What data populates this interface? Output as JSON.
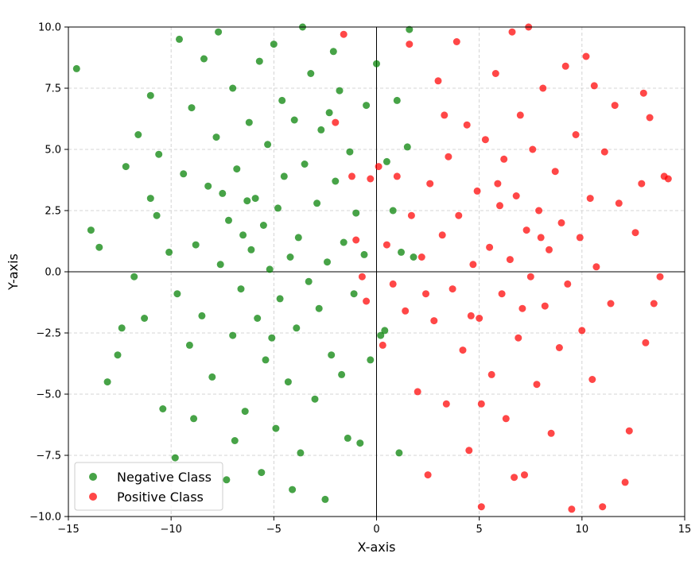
{
  "chart_data": {
    "type": "scatter",
    "title": "",
    "xlabel": "X-axis",
    "ylabel": "Y-axis",
    "xlim": [
      -15,
      15
    ],
    "ylim": [
      -10,
      10
    ],
    "xticks": [
      -15,
      -10,
      -5,
      0,
      5,
      10,
      15
    ],
    "xtick_labels": [
      "−15",
      "−10",
      "−5",
      "0",
      "5",
      "10",
      "15"
    ],
    "yticks": [
      -10,
      -7.5,
      -5,
      -2.5,
      0,
      2.5,
      5,
      7.5,
      10
    ],
    "ytick_labels": [
      "−10.0",
      "−7.5",
      "−5.0",
      "−2.5",
      "0.0",
      "2.5",
      "5.0",
      "7.5",
      "10.0"
    ],
    "grid": true,
    "grid_style": "dashed",
    "zero_lines": true,
    "legend_position": "lower-left",
    "series": [
      {
        "name": "Negative Class",
        "color": "#008000",
        "alpha": 0.72,
        "distribution": "cluster centered near (-5.5, 1), wide spread",
        "points": [
          [
            -14.6,
            8.3
          ],
          [
            -13.9,
            1.7
          ],
          [
            -13.5,
            1.0
          ],
          [
            -13.1,
            -4.5
          ],
          [
            -12.6,
            -3.4
          ],
          [
            -12.4,
            -2.3
          ],
          [
            -12.2,
            4.3
          ],
          [
            -11.8,
            -0.2
          ],
          [
            -11.6,
            5.6
          ],
          [
            -11.3,
            -1.9
          ],
          [
            -11.0,
            3.0
          ],
          [
            -11.0,
            7.2
          ],
          [
            -10.7,
            2.3
          ],
          [
            -10.4,
            -5.6
          ],
          [
            -10.1,
            0.8
          ],
          [
            -9.8,
            -7.6
          ],
          [
            -9.6,
            9.5
          ],
          [
            -9.4,
            4.0
          ],
          [
            -9.1,
            -3.0
          ],
          [
            -9.0,
            6.7
          ],
          [
            -8.8,
            1.1
          ],
          [
            -8.5,
            -1.8
          ],
          [
            -8.4,
            8.7
          ],
          [
            -8.2,
            3.5
          ],
          [
            -8.0,
            -4.3
          ],
          [
            -7.8,
            5.5
          ],
          [
            -7.7,
            9.8
          ],
          [
            -7.6,
            0.3
          ],
          [
            -7.3,
            -8.5
          ],
          [
            -7.2,
            2.1
          ],
          [
            -7.0,
            -2.6
          ],
          [
            -7.0,
            7.5
          ],
          [
            -6.8,
            4.2
          ],
          [
            -6.6,
            -0.7
          ],
          [
            -6.5,
            1.5
          ],
          [
            -6.4,
            -5.7
          ],
          [
            -6.2,
            6.1
          ],
          [
            -6.1,
            0.9
          ],
          [
            -5.9,
            3.0
          ],
          [
            -5.8,
            -1.9
          ],
          [
            -5.7,
            8.6
          ],
          [
            -5.6,
            -8.2
          ],
          [
            -5.5,
            1.9
          ],
          [
            -5.4,
            -3.6
          ],
          [
            -5.3,
            5.2
          ],
          [
            -5.2,
            0.1
          ],
          [
            -5.0,
            9.3
          ],
          [
            -4.9,
            -6.4
          ],
          [
            -4.8,
            2.6
          ],
          [
            -4.7,
            -1.1
          ],
          [
            -4.6,
            7.0
          ],
          [
            -4.5,
            3.9
          ],
          [
            -4.3,
            -4.5
          ],
          [
            -4.2,
            0.6
          ],
          [
            -4.0,
            6.2
          ],
          [
            -3.9,
            -2.3
          ],
          [
            -3.8,
            1.4
          ],
          [
            -3.7,
            -7.4
          ],
          [
            -3.6,
            10.0
          ],
          [
            -3.5,
            4.4
          ],
          [
            -3.3,
            -0.4
          ],
          [
            -3.2,
            8.1
          ],
          [
            -3.0,
            -5.2
          ],
          [
            -2.9,
            2.8
          ],
          [
            -2.8,
            -1.5
          ],
          [
            -2.7,
            5.8
          ],
          [
            -2.5,
            -9.3
          ],
          [
            -2.4,
            0.4
          ],
          [
            -2.3,
            6.5
          ],
          [
            -2.2,
            -3.4
          ],
          [
            -2.0,
            3.7
          ],
          [
            -1.8,
            7.4
          ],
          [
            -1.7,
            -4.2
          ],
          [
            -1.6,
            1.2
          ],
          [
            -1.4,
            -6.8
          ],
          [
            -1.3,
            4.9
          ],
          [
            -1.1,
            -0.9
          ],
          [
            -1.0,
            2.4
          ],
          [
            -0.8,
            -7.0
          ],
          [
            -0.6,
            0.7
          ],
          [
            -0.5,
            6.8
          ],
          [
            -0.3,
            -3.6
          ],
          [
            0.0,
            8.5
          ],
          [
            0.2,
            -2.6
          ],
          [
            0.5,
            4.5
          ],
          [
            0.8,
            2.5
          ],
          [
            1.0,
            7.0
          ],
          [
            1.2,
            0.8
          ],
          [
            1.5,
            5.1
          ],
          [
            1.6,
            9.9
          ],
          [
            1.8,
            0.6
          ],
          [
            1.1,
            -7.4
          ],
          [
            0.4,
            -2.4
          ],
          [
            -9.7,
            -0.9
          ],
          [
            -8.9,
            -6.0
          ],
          [
            -10.6,
            4.8
          ],
          [
            -6.9,
            -6.9
          ],
          [
            -4.1,
            -8.9
          ],
          [
            -2.1,
            9.0
          ],
          [
            -7.5,
            3.2
          ],
          [
            -6.3,
            2.9
          ],
          [
            -5.1,
            -2.7
          ]
        ]
      },
      {
        "name": "Positive Class",
        "color": "#ff0000",
        "alpha": 0.72,
        "distribution": "cluster centered near (6, 0.5), wide spread",
        "points": [
          [
            -2.0,
            6.1
          ],
          [
            -1.6,
            9.7
          ],
          [
            -1.2,
            3.9
          ],
          [
            -1.0,
            1.3
          ],
          [
            -0.7,
            -0.2
          ],
          [
            -0.5,
            -1.2
          ],
          [
            -0.3,
            3.8
          ],
          [
            0.1,
            4.3
          ],
          [
            0.3,
            -3.0
          ],
          [
            0.5,
            1.1
          ],
          [
            0.8,
            -0.5
          ],
          [
            1.0,
            3.9
          ],
          [
            1.4,
            -1.6
          ],
          [
            1.6,
            9.3
          ],
          [
            1.7,
            2.3
          ],
          [
            2.0,
            -4.9
          ],
          [
            2.2,
            0.6
          ],
          [
            2.5,
            -8.3
          ],
          [
            2.6,
            3.6
          ],
          [
            2.8,
            -2.0
          ],
          [
            3.0,
            7.8
          ],
          [
            3.2,
            1.5
          ],
          [
            3.4,
            -5.4
          ],
          [
            3.5,
            4.7
          ],
          [
            3.7,
            -0.7
          ],
          [
            3.9,
            9.4
          ],
          [
            4.0,
            2.3
          ],
          [
            4.2,
            -3.2
          ],
          [
            4.4,
            6.0
          ],
          [
            4.5,
            -7.3
          ],
          [
            4.7,
            0.3
          ],
          [
            4.9,
            3.3
          ],
          [
            5.0,
            -1.9
          ],
          [
            5.1,
            -9.6
          ],
          [
            5.3,
            5.4
          ],
          [
            5.5,
            1.0
          ],
          [
            5.6,
            -4.2
          ],
          [
            5.8,
            8.1
          ],
          [
            6.0,
            2.7
          ],
          [
            6.1,
            -0.9
          ],
          [
            6.2,
            4.6
          ],
          [
            6.3,
            -6.0
          ],
          [
            6.5,
            0.5
          ],
          [
            6.6,
            9.8
          ],
          [
            6.8,
            3.1
          ],
          [
            6.9,
            -2.7
          ],
          [
            7.0,
            6.4
          ],
          [
            7.2,
            -8.3
          ],
          [
            7.3,
            1.7
          ],
          [
            7.5,
            -0.2
          ],
          [
            7.6,
            5.0
          ],
          [
            7.8,
            -4.6
          ],
          [
            7.9,
            2.5
          ],
          [
            8.1,
            7.5
          ],
          [
            8.2,
            -1.4
          ],
          [
            8.4,
            0.9
          ],
          [
            8.5,
            -6.6
          ],
          [
            8.7,
            4.1
          ],
          [
            8.9,
            -3.1
          ],
          [
            9.0,
            2.0
          ],
          [
            9.2,
            8.4
          ],
          [
            9.3,
            -0.5
          ],
          [
            9.5,
            -9.7
          ],
          [
            9.7,
            5.6
          ],
          [
            9.9,
            1.4
          ],
          [
            10.0,
            -2.4
          ],
          [
            10.2,
            8.8
          ],
          [
            10.4,
            3.0
          ],
          [
            10.5,
            -4.4
          ],
          [
            10.7,
            0.2
          ],
          [
            11.0,
            -9.6
          ],
          [
            11.1,
            4.9
          ],
          [
            11.4,
            -1.3
          ],
          [
            11.6,
            6.8
          ],
          [
            11.8,
            2.8
          ],
          [
            12.1,
            -8.6
          ],
          [
            12.3,
            -6.5
          ],
          [
            12.6,
            1.6
          ],
          [
            12.9,
            3.6
          ],
          [
            13.1,
            -2.9
          ],
          [
            13.3,
            6.3
          ],
          [
            13.5,
            -1.3
          ],
          [
            13.8,
            -0.2
          ],
          [
            14.0,
            3.9
          ],
          [
            14.2,
            3.8
          ],
          [
            13.0,
            7.3
          ],
          [
            10.6,
            7.6
          ],
          [
            7.4,
            10.0
          ],
          [
            5.1,
            -5.4
          ],
          [
            6.7,
            -8.4
          ],
          [
            3.3,
            6.4
          ],
          [
            2.4,
            -0.9
          ],
          [
            4.6,
            -1.8
          ],
          [
            8.0,
            1.4
          ],
          [
            5.9,
            3.6
          ],
          [
            7.1,
            -1.5
          ]
        ]
      }
    ]
  }
}
